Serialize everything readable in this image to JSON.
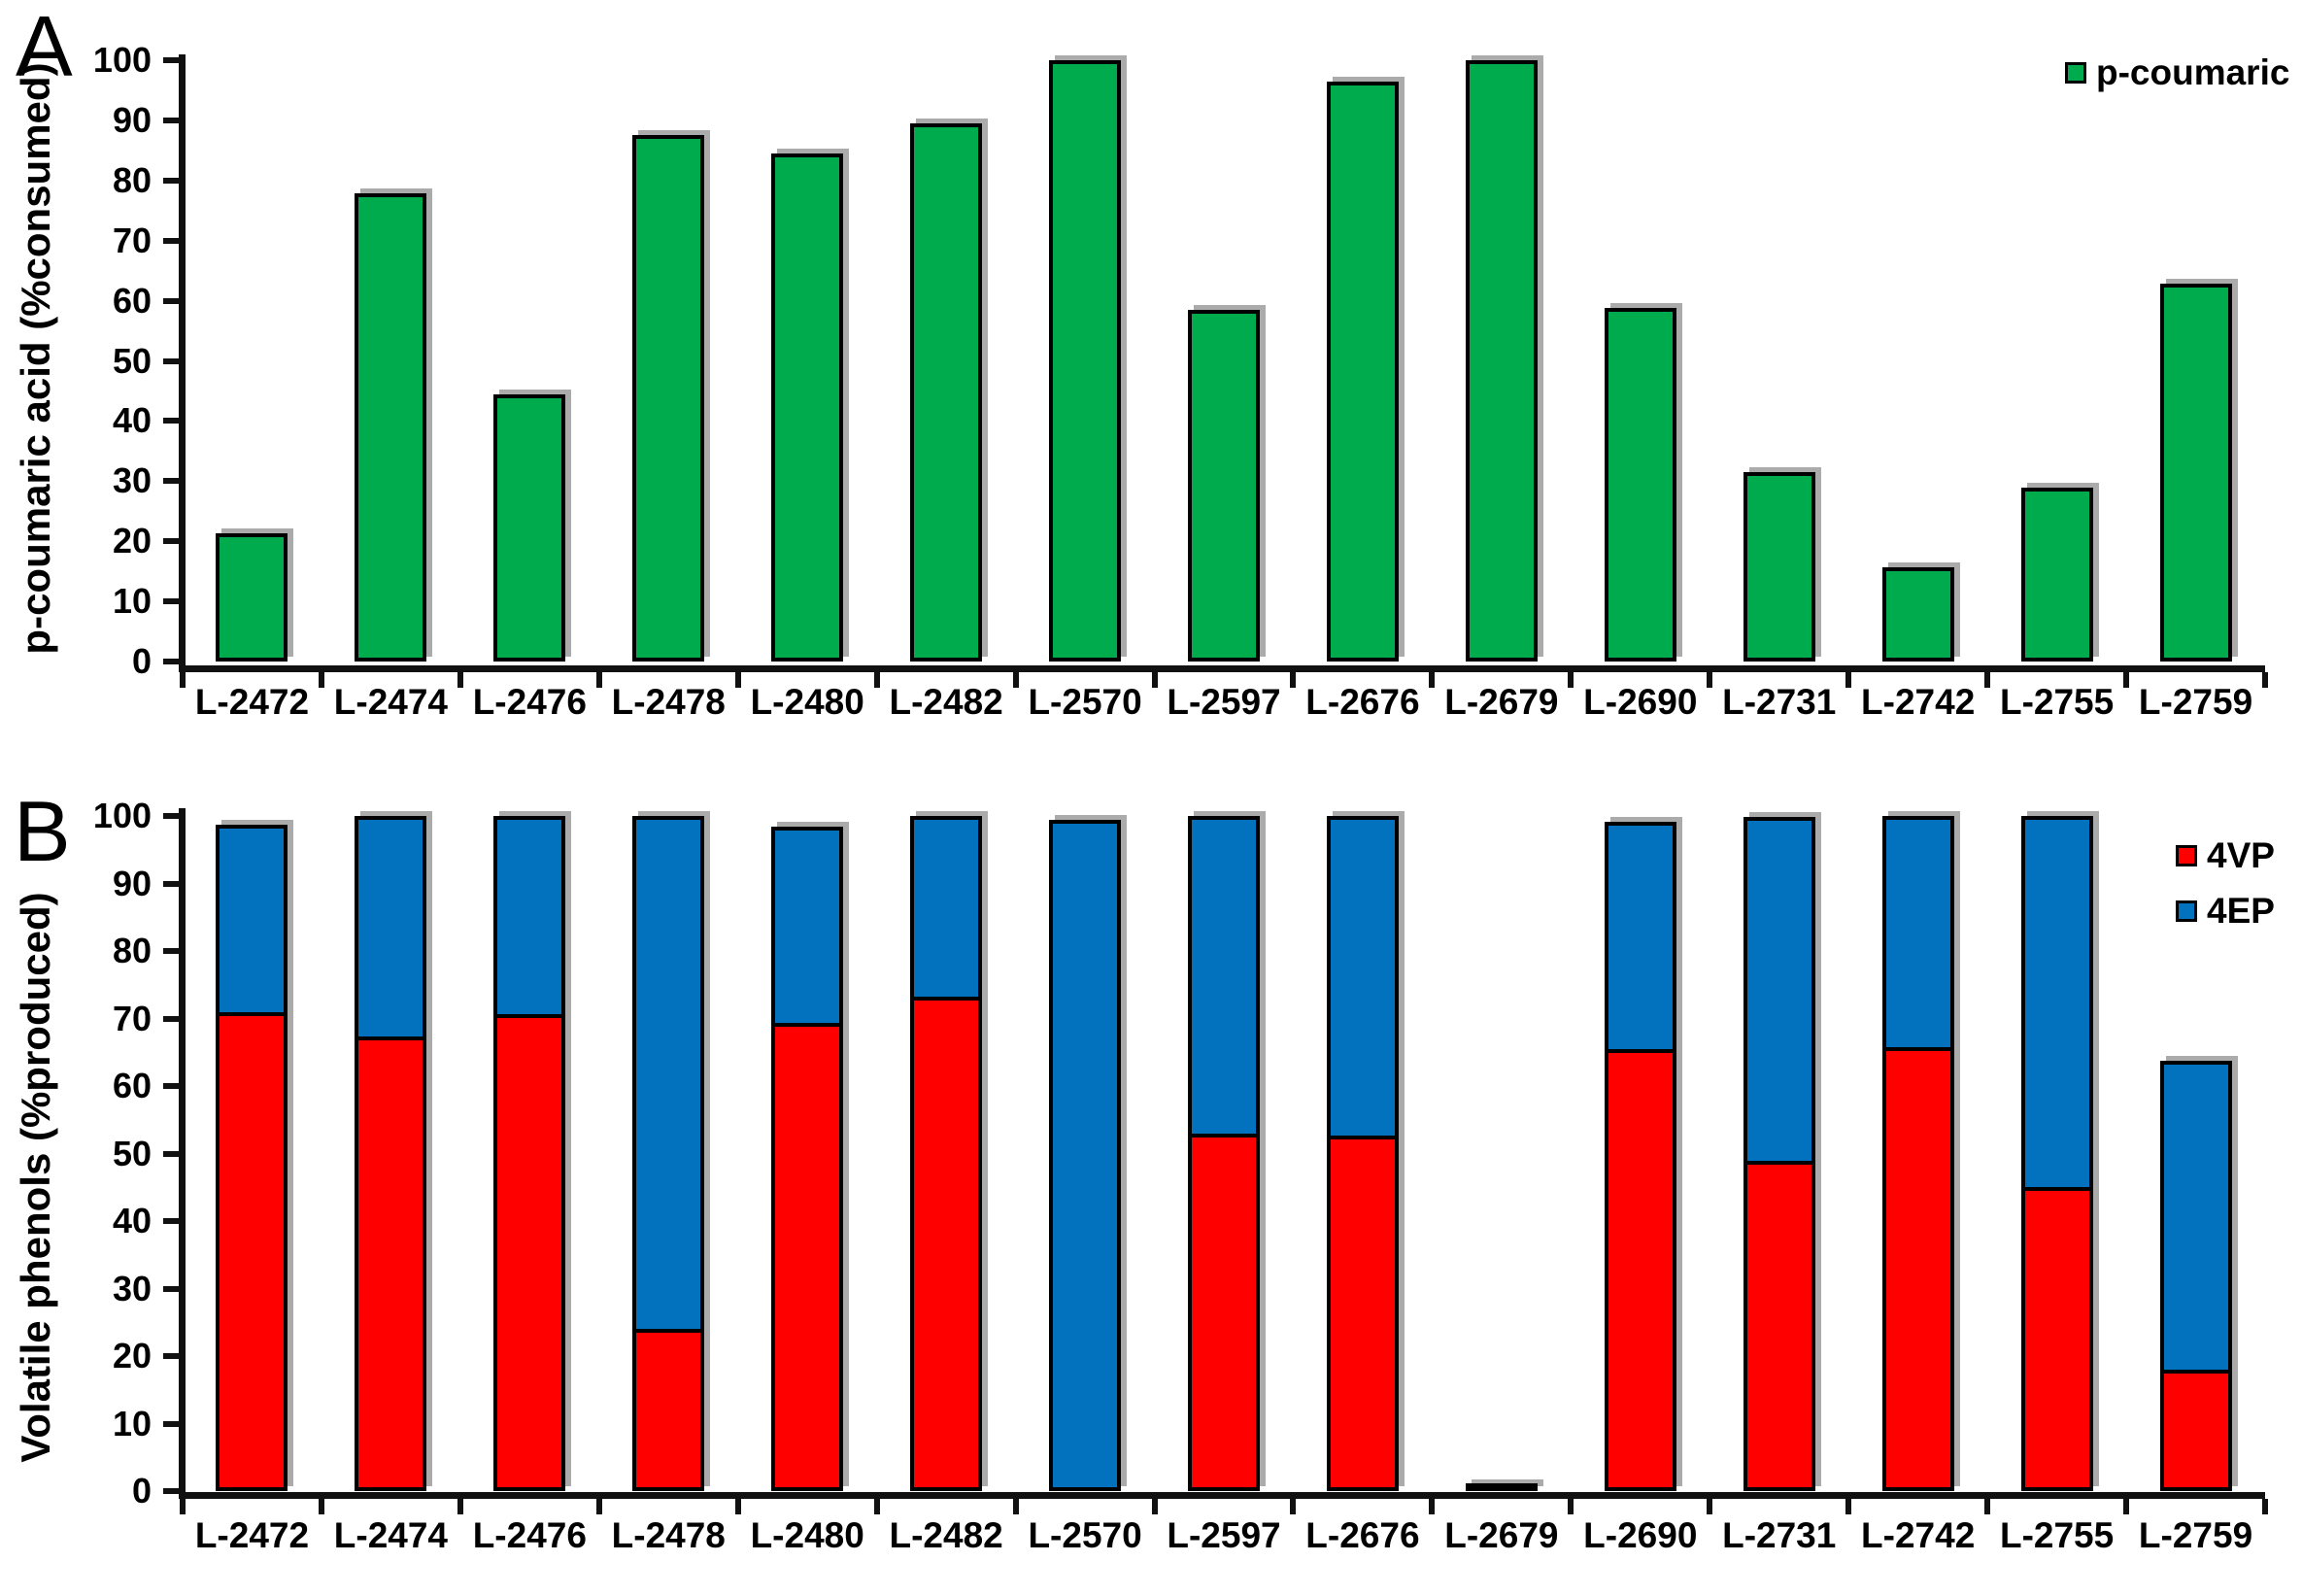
{
  "figure": {
    "background": "#FFFFFF",
    "bar_outline_color": "#000000",
    "shadow_color": "#ABABAB"
  },
  "chart_data": [
    {
      "panel_label": "A",
      "type": "bar",
      "title": "",
      "xlabel": "",
      "ylabel": "p-coumaric acid (%consumed)",
      "ylim": [
        0,
        100
      ],
      "yticks": [
        0,
        10,
        20,
        30,
        40,
        50,
        60,
        70,
        80,
        90,
        100
      ],
      "grid": false,
      "legend_position": "top-right",
      "legend": [
        {
          "label": "p-coumaric",
          "color": "#00AB4E"
        }
      ],
      "categories": [
        "L-2472",
        "L-2474",
        "L-2476",
        "L-2478",
        "L-2480",
        "L-2482",
        "L-2570",
        "L-2597",
        "L-2676",
        "L-2679",
        "L-2690",
        "L-2731",
        "L-2742",
        "L-2755",
        "L-2759"
      ],
      "values": [
        21.3,
        77.9,
        44.4,
        87.5,
        84.5,
        89.5,
        100,
        58.5,
        96.5,
        100,
        58.8,
        31.5,
        15.6,
        29.0,
        62.9
      ]
    },
    {
      "panel_label": "B",
      "type": "stacked-bar",
      "title": "",
      "xlabel": "",
      "ylabel": "Volatile phenols (%produced)",
      "ylim": [
        0,
        100
      ],
      "yticks": [
        0,
        10,
        20,
        30,
        40,
        50,
        60,
        70,
        80,
        90,
        100
      ],
      "grid": false,
      "legend_position": "top-right",
      "legend": [
        {
          "label": "4VP",
          "color": "#FF0000"
        },
        {
          "label": "4EP",
          "color": "#0272BE"
        }
      ],
      "categories": [
        "L-2472",
        "L-2474",
        "L-2476",
        "L-2478",
        "L-2480",
        "L-2482",
        "L-2570",
        "L-2597",
        "L-2676",
        "L-2679",
        "L-2690",
        "L-2731",
        "L-2742",
        "L-2755",
        "L-2759"
      ],
      "series": [
        {
          "name": "4VP",
          "color": "#FF0000",
          "values": [
            71.0,
            67.3,
            70.7,
            24.0,
            69.3,
            73.2,
            0,
            53.0,
            52.6,
            1.0,
            65.5,
            48.9,
            65.8,
            45.0,
            18.0
          ]
        },
        {
          "name": "4EP",
          "color": "#0272BE",
          "values": [
            27.7,
            32.7,
            29.3,
            76.0,
            29.1,
            26.8,
            99.4,
            47.0,
            47.4,
            0,
            33.7,
            50.9,
            34.2,
            55.0,
            45.7
          ]
        }
      ],
      "totals": [
        98.7,
        100,
        100,
        100,
        98.4,
        100,
        99.4,
        100,
        100,
        1.0,
        99.2,
        99.8,
        100,
        100,
        63.7
      ]
    }
  ]
}
